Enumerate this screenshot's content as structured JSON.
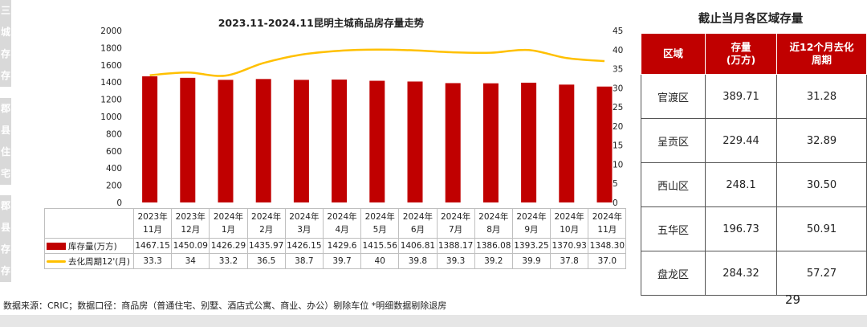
{
  "side_tab": {
    "blocks": [
      "三城存存",
      "郡县住宅",
      "郡县存存"
    ]
  },
  "chart_data": {
    "type": "bar+line",
    "title": "2023.11-2024.11昆明主城商品房存量走势",
    "categories": [
      [
        "2023年",
        "11月"
      ],
      [
        "2023年",
        "12月"
      ],
      [
        "2024年",
        "1月"
      ],
      [
        "2024年",
        "2月"
      ],
      [
        "2024年",
        "3月"
      ],
      [
        "2024年",
        "4月"
      ],
      [
        "2024年",
        "5月"
      ],
      [
        "2024年",
        "6月"
      ],
      [
        "2024年",
        "7月"
      ],
      [
        "2024年",
        "8月"
      ],
      [
        "2024年",
        "9月"
      ],
      [
        "2024年",
        "10月"
      ],
      [
        "2024年",
        "11月"
      ]
    ],
    "y_left": {
      "min": 0,
      "max": 2000,
      "step": 200,
      "ticks": [
        "0",
        "200",
        "400",
        "600",
        "800",
        "1000",
        "1200",
        "1400",
        "1600",
        "1800",
        "2000"
      ]
    },
    "y_right": {
      "min": 0,
      "max": 45,
      "step": 5,
      "ticks": [
        "0",
        "5",
        "10",
        "15",
        "20",
        "25",
        "30",
        "35",
        "40",
        "45"
      ]
    },
    "series": [
      {
        "name": "库存量(万方)",
        "type": "bar",
        "axis": "left",
        "color": "#c00000",
        "values": [
          1467.15,
          1450.09,
          1426.29,
          1435.97,
          1426.15,
          1429.6,
          1415.56,
          1406.81,
          1388.17,
          1386.08,
          1393.25,
          1370.93,
          1348.3
        ],
        "labels": [
          "1467.15",
          "1450.09",
          "1426.29",
          "1435.97",
          "1426.15",
          "1429.6",
          "1415.56",
          "1406.81",
          "1388.17",
          "1386.08",
          "1393.25",
          "1370.93",
          "1348.30"
        ]
      },
      {
        "name": "去化周期12'(月)",
        "type": "line",
        "axis": "right",
        "color": "#ffc000",
        "values": [
          33.3,
          34,
          33.2,
          36.5,
          38.7,
          39.7,
          40,
          39.8,
          39.3,
          39.2,
          39.9,
          37.8,
          37.0
        ],
        "labels": [
          "33.3",
          "34",
          "33.2",
          "36.5",
          "38.7",
          "39.7",
          "40",
          "39.8",
          "39.3",
          "39.2",
          "39.9",
          "37.8",
          "37.0"
        ]
      }
    ],
    "grid": false,
    "legend": "data-table"
  },
  "region_table": {
    "title": "截止当月各区域存量",
    "headers": [
      "区域",
      "存量\n(万方)",
      "近12个月去化\n周期"
    ],
    "rows": [
      [
        "官渡区",
        "389.71",
        "31.28"
      ],
      [
        "呈贡区",
        "229.44",
        "32.89"
      ],
      [
        "西山区",
        "248.1",
        "30.50"
      ],
      [
        "五华区",
        "196.73",
        "50.91"
      ],
      [
        "盘龙区",
        "284.32",
        "57.27"
      ]
    ],
    "header_color": "#c00000"
  },
  "footnote": "数据来源：CRIC；数据口径：商品房（普通住宅、别墅、酒店式公寓、商业、办公）剔除车位  *明细数据剔除退房",
  "page_number": "29"
}
